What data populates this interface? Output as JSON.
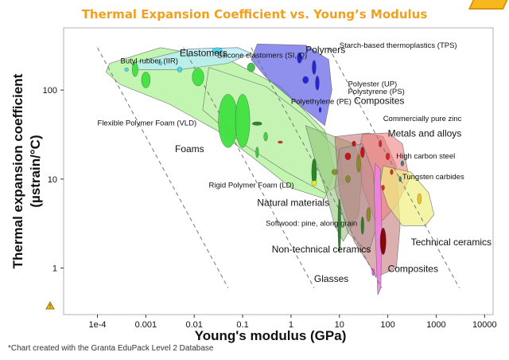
{
  "title": "Thermal Expansion Coefficient vs. Young’s Modulus",
  "footnote": "*Chart created with the Granta EduPack Level 2 Database",
  "chart_data": {
    "type": "scatter",
    "xlabel": "Young's modulus (GPa)",
    "ylabel_line1": "Thermal expansion coefficient",
    "ylabel_line2": "(µstrain/°C)",
    "xscale": "log",
    "yscale": "log",
    "xlim": [
      2e-05,
      15000
    ],
    "ylim": [
      0.3,
      500
    ],
    "xticks": [
      {
        "v": 0.0001,
        "label": "1e-4"
      },
      {
        "v": 0.001,
        "label": "0.001"
      },
      {
        "v": 0.01,
        "label": "0.01"
      },
      {
        "v": 0.1,
        "label": "0.1"
      },
      {
        "v": 1,
        "label": "1"
      },
      {
        "v": 10,
        "label": "10"
      },
      {
        "v": 100,
        "label": "100"
      },
      {
        "v": 1000,
        "label": "1000"
      },
      {
        "v": 10000,
        "label": "10000"
      }
    ],
    "yticks": [
      {
        "v": 1,
        "label": "1"
      },
      {
        "v": 10,
        "label": "10"
      },
      {
        "v": 100,
        "label": "100"
      }
    ],
    "guide_lines_slope": -1,
    "guide_lines": [
      {
        "x0": 0.0001,
        "y0": 300,
        "x1": 0.05,
        "y1": 0.6
      },
      {
        "x0": 0.006,
        "y0": 300,
        "x1": 3,
        "y1": 0.6
      },
      {
        "x0": 0.15,
        "y0": 300,
        "x1": 75,
        "y1": 0.6
      },
      {
        "x0": 6,
        "y0": 300,
        "x1": 3000,
        "y1": 0.6
      }
    ],
    "envelopes": [
      {
        "name": "Foams",
        "color": "#90ee70",
        "opacity": 0.55,
        "points": [
          [
            0.00018,
            200
          ],
          [
            0.002,
            300
          ],
          [
            0.05,
            220
          ],
          [
            0.6,
            110
          ],
          [
            5,
            35
          ],
          [
            8,
            12
          ],
          [
            5,
            6
          ],
          [
            1,
            8
          ],
          [
            0.2,
            16
          ],
          [
            0.03,
            35
          ],
          [
            0.003,
            70
          ],
          [
            0.0003,
            115
          ],
          [
            0.00015,
            160
          ]
        ]
      },
      {
        "name": "Rigid Polymer Foam (LD)",
        "color": "#c8f0b8",
        "opacity": 0.55,
        "points": [
          [
            0.02,
            180
          ],
          [
            0.3,
            110
          ],
          [
            2,
            50
          ],
          [
            10,
            20
          ],
          [
            12,
            9
          ],
          [
            5,
            7
          ],
          [
            0.8,
            12
          ],
          [
            0.1,
            25
          ],
          [
            0.015,
            60
          ]
        ]
      },
      {
        "name": "Elastomers",
        "color": "#b8eef8",
        "opacity": 0.8,
        "points": [
          [
            0.0005,
            200
          ],
          [
            0.008,
            290
          ],
          [
            0.08,
            300
          ],
          [
            0.15,
            260
          ],
          [
            0.05,
            200
          ],
          [
            0.005,
            170
          ],
          [
            0.0007,
            170
          ]
        ]
      },
      {
        "name": "Polymers",
        "color": "#6a6ae8",
        "opacity": 0.75,
        "points": [
          [
            0.2,
            330
          ],
          [
            2,
            320
          ],
          [
            6,
            220
          ],
          [
            7,
            100
          ],
          [
            5,
            40
          ],
          [
            3,
            50
          ],
          [
            1,
            80
          ],
          [
            0.3,
            140
          ],
          [
            0.15,
            220
          ]
        ]
      },
      {
        "name": "Natural materials",
        "color": "#8cc070",
        "opacity": 0.55,
        "points": [
          [
            2,
            40
          ],
          [
            8,
            30
          ],
          [
            20,
            25
          ],
          [
            30,
            14
          ],
          [
            25,
            4
          ],
          [
            12,
            2
          ],
          [
            8,
            3
          ],
          [
            5,
            8
          ],
          [
            3,
            18
          ]
        ]
      },
      {
        "name": "Composites",
        "color": "#c07070",
        "opacity": 0.55,
        "points": [
          [
            8,
            30
          ],
          [
            40,
            33
          ],
          [
            80,
            30
          ],
          [
            150,
            14
          ],
          [
            180,
            3
          ],
          [
            150,
            1
          ],
          [
            60,
            0.8
          ],
          [
            20,
            2
          ],
          [
            10,
            7
          ]
        ]
      },
      {
        "name": "Metals and alloys",
        "color": "#f08080",
        "opacity": 0.6,
        "points": [
          [
            30,
            32
          ],
          [
            100,
            33
          ],
          [
            200,
            25
          ],
          [
            280,
            10
          ],
          [
            150,
            5
          ],
          [
            60,
            3
          ],
          [
            30,
            8
          ],
          [
            25,
            20
          ]
        ]
      },
      {
        "name": "Technical ceramics",
        "color": "#f0f080",
        "opacity": 0.7,
        "points": [
          [
            80,
            14
          ],
          [
            300,
            12
          ],
          [
            700,
            7
          ],
          [
            900,
            4
          ],
          [
            600,
            3
          ],
          [
            200,
            3
          ],
          [
            100,
            5
          ],
          [
            70,
            9
          ]
        ]
      },
      {
        "name": "Non-technical ceramics",
        "color": "#b09090",
        "opacity": 0.5,
        "points": [
          [
            10,
            22
          ],
          [
            30,
            25
          ],
          [
            50,
            12
          ],
          [
            60,
            3
          ],
          [
            40,
            1.5
          ],
          [
            15,
            2.5
          ],
          [
            8,
            8
          ]
        ]
      },
      {
        "name": "Glasses",
        "color": "#f080e0",
        "opacity": 0.9,
        "points": [
          [
            55,
            15
          ],
          [
            70,
            13
          ],
          [
            75,
            3
          ],
          [
            72,
            0.6
          ],
          [
            62,
            0.5
          ],
          [
            56,
            2
          ],
          [
            52,
            8
          ]
        ]
      }
    ],
    "bubbles": [
      {
        "x": 0.0006,
        "y": 170,
        "rx": 0.06,
        "ry": 0.08,
        "color": "#40e040"
      },
      {
        "x": 0.001,
        "y": 130,
        "rx": 0.09,
        "ry": 0.09,
        "color": "#40e040"
      },
      {
        "x": 0.012,
        "y": 140,
        "rx": 0.12,
        "ry": 0.1,
        "color": "#40e040"
      },
      {
        "x": 0.05,
        "y": 45,
        "rx": 0.2,
        "ry": 0.3,
        "color": "#40e040"
      },
      {
        "x": 0.1,
        "y": 45,
        "rx": 0.15,
        "ry": 0.3,
        "color": "#40e040"
      },
      {
        "x": 0.15,
        "y": 180,
        "rx": 0.08,
        "ry": 0.05,
        "color": "#40c040"
      },
      {
        "x": 0.3,
        "y": 30,
        "rx": 0.04,
        "ry": 0.05,
        "color": "#40d040"
      },
      {
        "x": 0.2,
        "y": 20,
        "rx": 0.03,
        "ry": 0.06,
        "color": "#40c040"
      },
      {
        "x": 0.002,
        "y": 200,
        "rx": 0.04,
        "ry": 0.02,
        "color": "#40d8f0"
      },
      {
        "x": 0.0004,
        "y": 170,
        "rx": 0.04,
        "ry": 0.02,
        "color": "#40d8f0"
      },
      {
        "x": 0.005,
        "y": 170,
        "rx": 0.05,
        "ry": 0.03,
        "color": "#40d8f0"
      },
      {
        "x": 0.03,
        "y": 280,
        "rx": 0.1,
        "ry": 0.03,
        "color": "#40d8f0"
      },
      {
        "x": 0.2,
        "y": 42,
        "rx": 0.1,
        "ry": 0.02,
        "color": "#208020"
      },
      {
        "x": 0.6,
        "y": 26,
        "rx": 0.05,
        "ry": 0.01,
        "color": "#e02020"
      },
      {
        "x": 3,
        "y": 12,
        "rx": 0.05,
        "ry": 0.15,
        "color": "#208020"
      },
      {
        "x": 10,
        "y": 3,
        "rx": 0.03,
        "ry": 0.3,
        "color": "#208020"
      },
      {
        "x": 30,
        "y": 3,
        "rx": 0.03,
        "ry": 0.1,
        "color": "#208020"
      },
      {
        "x": 3,
        "y": 9,
        "rx": 0.05,
        "ry": 0.03,
        "color": "#f0f020"
      },
      {
        "x": 8,
        "y": 12,
        "rx": 0.06,
        "ry": 0.03,
        "color": "#8a8a20"
      },
      {
        "x": 15,
        "y": 10,
        "rx": 0.05,
        "ry": 0.04,
        "color": "#8a8a20"
      },
      {
        "x": 25,
        "y": 15,
        "rx": 0.04,
        "ry": 0.1,
        "color": "#8a8a20"
      },
      {
        "x": 40,
        "y": 4,
        "rx": 0.04,
        "ry": 0.08,
        "color": "#8a8a20"
      },
      {
        "x": 80,
        "y": 2,
        "rx": 0.06,
        "ry": 0.15,
        "color": "#800000"
      },
      {
        "x": 50,
        "y": 0.9,
        "rx": 0.02,
        "ry": 0.04,
        "color": "#f040f0"
      },
      {
        "x": 1.5,
        "y": 230,
        "rx": 0.05,
        "ry": 0.06,
        "color": "#2020d0"
      },
      {
        "x": 3,
        "y": 180,
        "rx": 0.04,
        "ry": 0.08,
        "color": "#2020d0"
      },
      {
        "x": 2,
        "y": 130,
        "rx": 0.06,
        "ry": 0.04,
        "color": "#2020d0"
      },
      {
        "x": 3.5,
        "y": 120,
        "rx": 0.04,
        "ry": 0.08,
        "color": "#2020d0"
      },
      {
        "x": 4,
        "y": 60,
        "rx": 0.02,
        "ry": 0.03,
        "color": "#2020d0"
      },
      {
        "x": 15,
        "y": 18,
        "rx": 0.06,
        "ry": 0.04,
        "color": "#c01010"
      },
      {
        "x": 20,
        "y": 25,
        "rx": 0.04,
        "ry": 0.03,
        "color": "#c01010"
      },
      {
        "x": 30,
        "y": 20,
        "rx": 0.04,
        "ry": 0.06,
        "color": "#c01010"
      },
      {
        "x": 70,
        "y": 25,
        "rx": 0.03,
        "ry": 0.04,
        "color": "#e02020"
      },
      {
        "x": 100,
        "y": 18,
        "rx": 0.04,
        "ry": 0.04,
        "color": "#e02020"
      },
      {
        "x": 120,
        "y": 12,
        "rx": 0.03,
        "ry": 0.03,
        "color": "#e02020"
      },
      {
        "x": 200,
        "y": 15,
        "rx": 0.03,
        "ry": 0.03,
        "color": "#208080"
      },
      {
        "x": 180,
        "y": 10,
        "rx": 0.02,
        "ry": 0.03,
        "color": "#208080"
      },
      {
        "x": 450,
        "y": 6,
        "rx": 0.04,
        "ry": 0.06,
        "color": "#f0c020"
      },
      {
        "x": 80,
        "y": 8,
        "rx": 0.03,
        "ry": 0.03,
        "color": "#e02020"
      }
    ],
    "annotations": [
      {
        "text": "Elastomers",
        "x": 0.005,
        "y": 240,
        "size": "big",
        "tx": 0.005,
        "ty": 240,
        "lx": 0.005,
        "ly": 240
      },
      {
        "text": "Silicone elastomers (SI, Q)",
        "x": 0.03,
        "y": 230,
        "size": "small",
        "tx": 0.03,
        "ty": 230,
        "lx": 0.03,
        "ly": 230
      },
      {
        "text": "Polymers",
        "x": 2,
        "y": 260,
        "size": "big",
        "tx": 2,
        "ty": 260,
        "lx": 2,
        "ly": 260
      },
      {
        "text": "Starch-based thermoplastics (TPS)",
        "x": 10,
        "y": 300,
        "size": "small",
        "tx": 10,
        "ty": 300,
        "lx": 10,
        "ly": 300
      },
      {
        "text": "Butyl rubber (IIR)",
        "x": 0.0003,
        "y": 200,
        "size": "small",
        "tx": 0.0003,
        "ty": 200,
        "lx": 0.0003,
        "ly": 200
      },
      {
        "text": "Polyester (UP)",
        "x": 15,
        "y": 110,
        "size": "small",
        "tx": 15,
        "ty": 110,
        "lx": 15,
        "ly": 110
      },
      {
        "text": "Polystyrene (PS)",
        "x": 15,
        "y": 90,
        "size": "small",
        "tx": 15,
        "ty": 90,
        "lx": 15,
        "ly": 90
      },
      {
        "text": "Polyethylene (PE)",
        "x": 1,
        "y": 70,
        "size": "small",
        "tx": 1,
        "ty": 70,
        "lx": 1,
        "ly": 70
      },
      {
        "text": "Composites",
        "x": 20,
        "y": 70,
        "size": "big",
        "tx": 20,
        "ty": 70,
        "lx": 20,
        "ly": 70
      },
      {
        "text": "Commercially pure zinc",
        "x": 80,
        "y": 45,
        "size": "small",
        "tx": 80,
        "ty": 45,
        "lx": 80,
        "ly": 45
      },
      {
        "text": "Metals and alloys",
        "x": 100,
        "y": 30,
        "size": "big",
        "tx": 100,
        "ty": 30,
        "lx": 100,
        "ly": 30
      },
      {
        "text": "High carbon steel",
        "x": 150,
        "y": 17,
        "size": "small",
        "tx": 150,
        "ty": 17,
        "lx": 150,
        "ly": 17
      },
      {
        "text": "Tungsten carbides",
        "x": 200,
        "y": 10,
        "size": "small",
        "tx": 200,
        "ty": 10,
        "lx": 200,
        "ly": 10
      },
      {
        "text": "Flexible Polymer Foam (VLD)",
        "x": 0.0001,
        "y": 40,
        "size": "small",
        "tx": 0.0001,
        "ty": 40,
        "lx": 0.0001,
        "ly": 40
      },
      {
        "text": "Foams",
        "x": 0.004,
        "y": 20,
        "size": "big",
        "tx": 0.004,
        "ty": 20,
        "lx": 0.004,
        "ly": 20
      },
      {
        "text": "Rigid Polymer Foam (LD)",
        "x": 0.02,
        "y": 8,
        "size": "small",
        "tx": 0.02,
        "ty": 8,
        "lx": 0.02,
        "ly": 8
      },
      {
        "text": "Natural materials",
        "x": 0.2,
        "y": 5,
        "size": "big",
        "tx": 0.2,
        "ty": 5,
        "lx": 0.2,
        "ly": 5
      },
      {
        "text": "Softwood: pine, along grain",
        "x": 0.3,
        "y": 3,
        "size": "small",
        "tx": 0.3,
        "ty": 3,
        "lx": 0.3,
        "ly": 3
      },
      {
        "text": "Non-technical ceramics",
        "x": 0.4,
        "y": 1.5,
        "size": "big",
        "tx": 0.4,
        "ty": 1.5,
        "lx": 0.4,
        "ly": 1.5
      },
      {
        "text": "Technical ceramics",
        "x": 300,
        "y": 1.8,
        "size": "big",
        "tx": 300,
        "ty": 1.8,
        "lx": 300,
        "ly": 1.8
      },
      {
        "text": "Composites",
        "x": 100,
        "y": 0.9,
        "size": "big",
        "tx": 100,
        "ty": 0.9,
        "lx": 100,
        "ly": 0.9
      },
      {
        "text": "Glasses",
        "x": 3,
        "y": 0.7,
        "size": "big",
        "tx": 3,
        "ty": 0.7,
        "lx": 3,
        "ly": 0.7
      }
    ]
  }
}
